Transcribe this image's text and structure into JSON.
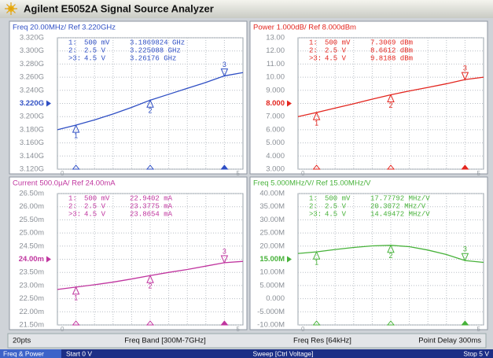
{
  "window": {
    "title": "Agilent E5052A Signal Source Analyzer"
  },
  "chart_data": [
    {
      "type": "line",
      "title": "Freq 20.00MHz/ Ref 3.220GHz",
      "color": "#2f4fc4",
      "x": [
        0,
        0.5,
        1,
        1.5,
        2,
        2.5,
        3,
        3.5,
        4,
        4.5,
        5
      ],
      "values": [
        3180000000,
        3187000000,
        3195000000,
        3204000000,
        3214000000,
        3225000000,
        3234000000,
        3243000000,
        3252000000,
        3262000000,
        3267000000
      ],
      "xlim": [
        0,
        5
      ],
      "xticks": [
        0,
        5
      ],
      "ylim": [
        3120000000,
        3320000000
      ],
      "yticks": [
        {
          "value": 3320000000,
          "label": "3.320G"
        },
        {
          "value": 3300000000,
          "label": "3.300G"
        },
        {
          "value": 3280000000,
          "label": "3.280G"
        },
        {
          "value": 3260000000,
          "label": "3.260G"
        },
        {
          "value": 3240000000,
          "label": "3.240G"
        },
        {
          "value": 3220000000,
          "label": "3.220G"
        },
        {
          "value": 3200000000,
          "label": "3.200G"
        },
        {
          "value": 3180000000,
          "label": "3.180G"
        },
        {
          "value": 3160000000,
          "label": "3.160G"
        },
        {
          "value": 3140000000,
          "label": "3.140G"
        },
        {
          "value": 3120000000,
          "label": "3.120G"
        }
      ],
      "ref": 3220000000,
      "grid": true,
      "markers": {
        "names": [
          "1:",
          "2:",
          ">3:"
        ],
        "ids": [
          "1",
          "2",
          "3"
        ],
        "x": [
          0.5,
          2.5,
          4.5
        ],
        "x_labels": [
          "500 mV",
          "2.5 V",
          "4.5 V"
        ],
        "values": [
          3186982400,
          3225088000,
          3261760000
        ],
        "value_labels": [
          "3.1869824 GHz",
          "3.225088 GHz",
          "3.26176 GHz"
        ]
      }
    },
    {
      "type": "line",
      "title": "Power 1.000dB/ Ref 8.000dBm",
      "color": "#e3261f",
      "x": [
        0,
        0.5,
        1,
        1.5,
        2,
        2.5,
        3,
        3.5,
        4,
        4.5,
        5
      ],
      "values": [
        7.0,
        7.31,
        7.65,
        7.98,
        8.33,
        8.66,
        8.95,
        9.22,
        9.5,
        9.82,
        10.0
      ],
      "xlim": [
        0,
        5
      ],
      "xticks": [
        0,
        5
      ],
      "ylim": [
        3,
        13
      ],
      "yticks": [
        {
          "value": 13,
          "label": "13.00"
        },
        {
          "value": 12,
          "label": "12.00"
        },
        {
          "value": 11,
          "label": "11.00"
        },
        {
          "value": 10,
          "label": "10.00"
        },
        {
          "value": 9,
          "label": "9.000"
        },
        {
          "value": 8,
          "label": "8.000"
        },
        {
          "value": 7,
          "label": "7.000"
        },
        {
          "value": 6,
          "label": "6.000"
        },
        {
          "value": 5,
          "label": "5.000"
        },
        {
          "value": 4,
          "label": "4.000"
        },
        {
          "value": 3,
          "label": "3.000"
        }
      ],
      "ref": 8,
      "grid": true,
      "markers": {
        "names": [
          "1:",
          "2:",
          ">3:"
        ],
        "ids": [
          "1",
          "2",
          "3"
        ],
        "x": [
          0.5,
          2.5,
          4.5
        ],
        "x_labels": [
          "500 mV",
          "2.5 V",
          "4.5 V"
        ],
        "values": [
          7.3069,
          8.6612,
          9.8188
        ],
        "value_labels": [
          "7.3069 dBm",
          "8.6612 dBm",
          "9.8188 dBm"
        ]
      }
    },
    {
      "type": "line",
      "title": "Current 500.0μA/ Ref 24.00mA",
      "color": "#c0359f",
      "x": [
        0,
        0.5,
        1,
        1.5,
        2,
        2.5,
        3,
        3.5,
        4,
        4.5,
        5
      ],
      "values": [
        0.02285,
        0.02294,
        0.02303,
        0.02313,
        0.02325,
        0.02338,
        0.0235,
        0.02361,
        0.02374,
        0.02387,
        0.02392
      ],
      "xlim": [
        0,
        5
      ],
      "xticks": [
        0,
        5
      ],
      "ylim": [
        0.0215,
        0.0265
      ],
      "yticks": [
        {
          "value": 0.0265,
          "label": "26.50m"
        },
        {
          "value": 0.026,
          "label": "26.00m"
        },
        {
          "value": 0.0255,
          "label": "25.50m"
        },
        {
          "value": 0.025,
          "label": "25.00m"
        },
        {
          "value": 0.0245,
          "label": "24.50m"
        },
        {
          "value": 0.024,
          "label": "24.00m"
        },
        {
          "value": 0.0235,
          "label": "23.50m"
        },
        {
          "value": 0.023,
          "label": "23.00m"
        },
        {
          "value": 0.0225,
          "label": "22.50m"
        },
        {
          "value": 0.022,
          "label": "22.00m"
        },
        {
          "value": 0.0215,
          "label": "21.50m"
        }
      ],
      "ref": 0.024,
      "grid": true,
      "markers": {
        "names": [
          "1:",
          "2:",
          ">3:"
        ],
        "ids": [
          "1",
          "2",
          "3"
        ],
        "x": [
          0.5,
          2.5,
          4.5
        ],
        "x_labels": [
          "500 mV",
          "2.5 V",
          "4.5 V"
        ],
        "values": [
          0.0229402,
          0.0233775,
          0.0238654
        ],
        "value_labels": [
          "22.9402 mA",
          "23.3775 mA",
          "23.8654 mA"
        ]
      }
    },
    {
      "type": "line",
      "title": "Freq 5.000MHz/V/ Ref 15.00MHz/V",
      "color": "#47b23a",
      "x": [
        0,
        0.5,
        1,
        1.5,
        2,
        2.5,
        3,
        3.5,
        4,
        4.5,
        5
      ],
      "values": [
        17200000,
        17800000,
        18700000,
        19500000,
        20100000,
        20300000,
        19800000,
        18500000,
        16800000,
        14500000,
        13800000
      ],
      "xlim": [
        0,
        5
      ],
      "xticks": [
        0,
        5
      ],
      "ylim": [
        -10000000,
        40000000
      ],
      "yticks": [
        {
          "value": 40000000,
          "label": "40.00M"
        },
        {
          "value": 35000000,
          "label": "35.00M"
        },
        {
          "value": 30000000,
          "label": "30.00M"
        },
        {
          "value": 25000000,
          "label": "25.00M"
        },
        {
          "value": 20000000,
          "label": "20.00M"
        },
        {
          "value": 15000000,
          "label": "15.00M"
        },
        {
          "value": 10000000,
          "label": "10.00M"
        },
        {
          "value": 5000000,
          "label": "5.000M"
        },
        {
          "value": 0,
          "label": "0.000"
        },
        {
          "value": -5000000,
          "label": "-5.000M"
        },
        {
          "value": -10000000,
          "label": "-10.00M"
        }
      ],
      "ref": 15000000,
      "grid": true,
      "markers": {
        "names": [
          "1:",
          "2:",
          ">3:"
        ],
        "ids": [
          "1",
          "2",
          "3"
        ],
        "x": [
          0.5,
          2.5,
          4.5
        ],
        "x_labels": [
          "500 mV",
          "2.5 V",
          "4.5 V"
        ],
        "values": [
          17777920,
          20307200,
          14494720
        ],
        "value_labels": [
          "17.77792 MHz/V",
          "20.3072 MHz/V",
          "14.49472 MHz/V"
        ]
      }
    }
  ],
  "settings_bar": [
    "20pts",
    "Freq Band [300M-7GHz]",
    "Freq Res [64kHz]",
    "Point Delay 300ms"
  ],
  "status_bar": [
    "Freq & Power",
    "Start 0 V",
    "Sweep [Ctrl Voltage]",
    "Stop 5 V"
  ]
}
